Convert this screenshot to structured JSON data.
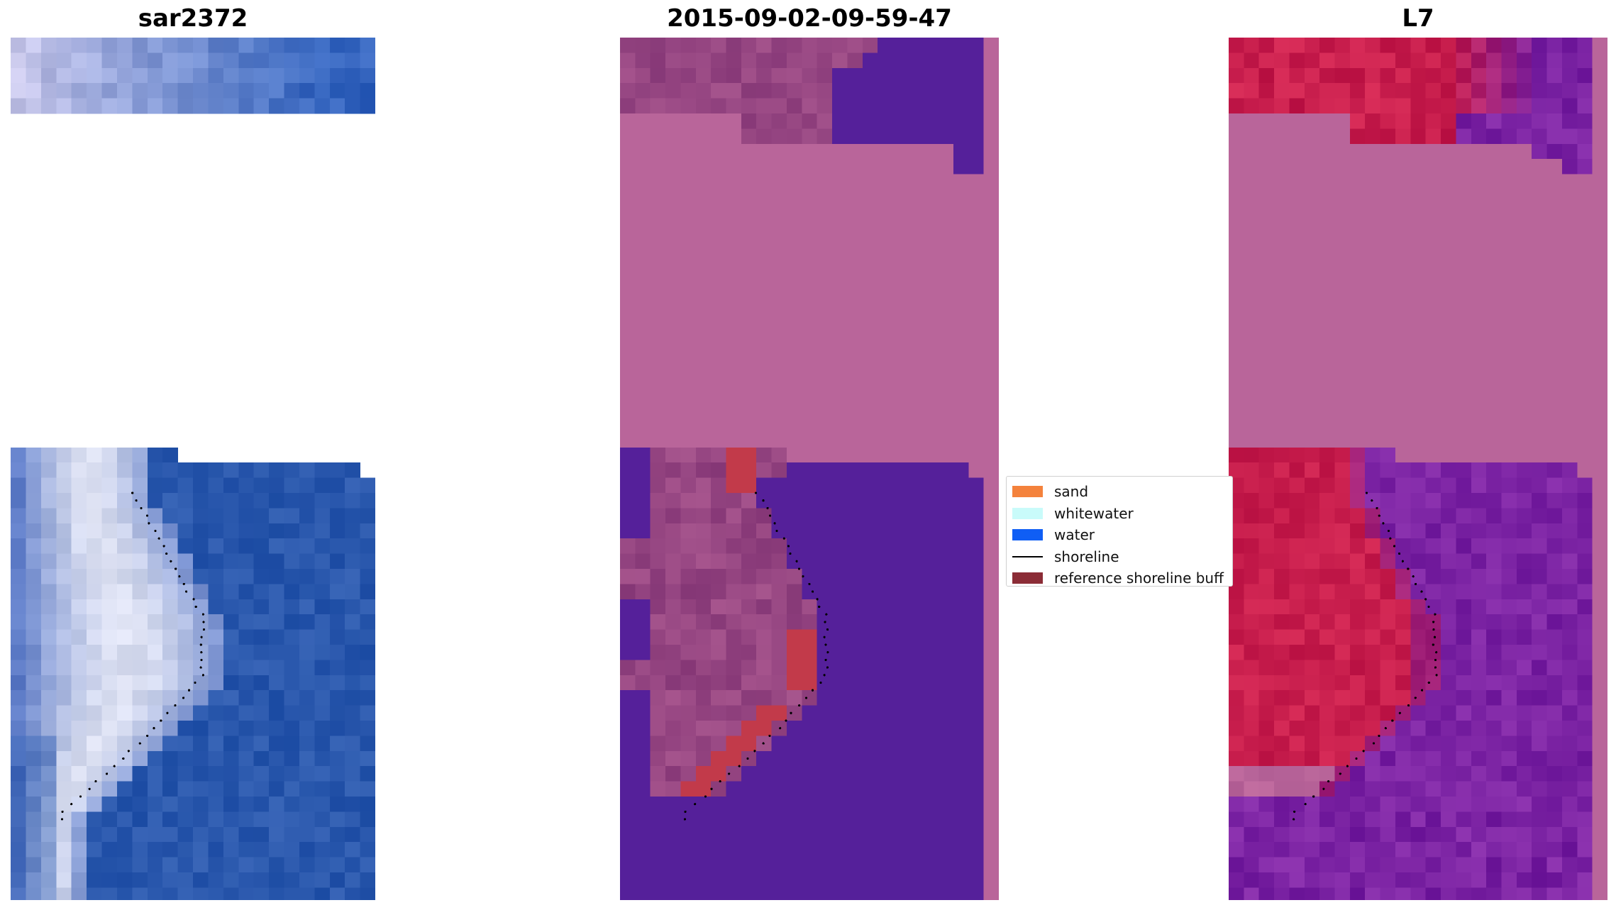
{
  "panels": {
    "left_title": "sar2372",
    "middle_title": "2015-09-02-09-59-47",
    "right_title": "L7"
  },
  "legend": {
    "items": [
      {
        "label": "sand",
        "kind": "patch",
        "color": "#f4823c"
      },
      {
        "label": "whitewater",
        "kind": "patch",
        "color": "#c9fbfa"
      },
      {
        "label": "water",
        "kind": "patch",
        "color": "#0f5ef5"
      },
      {
        "label": "shoreline",
        "kind": "line",
        "color": "#000000"
      },
      {
        "label": "reference shoreline buff",
        "kind": "patch",
        "color": "#8b2c36"
      }
    ]
  },
  "colors": {
    "rgb_water": "#2a58ad",
    "rgb_surf": "#f4f4f8",
    "class_sand_overlay": "#b9659a",
    "class_water": "#55209a",
    "class_buffer": "#c23a4a",
    "index_land": "#c81e4d",
    "index_water": "#7b23a3"
  }
}
